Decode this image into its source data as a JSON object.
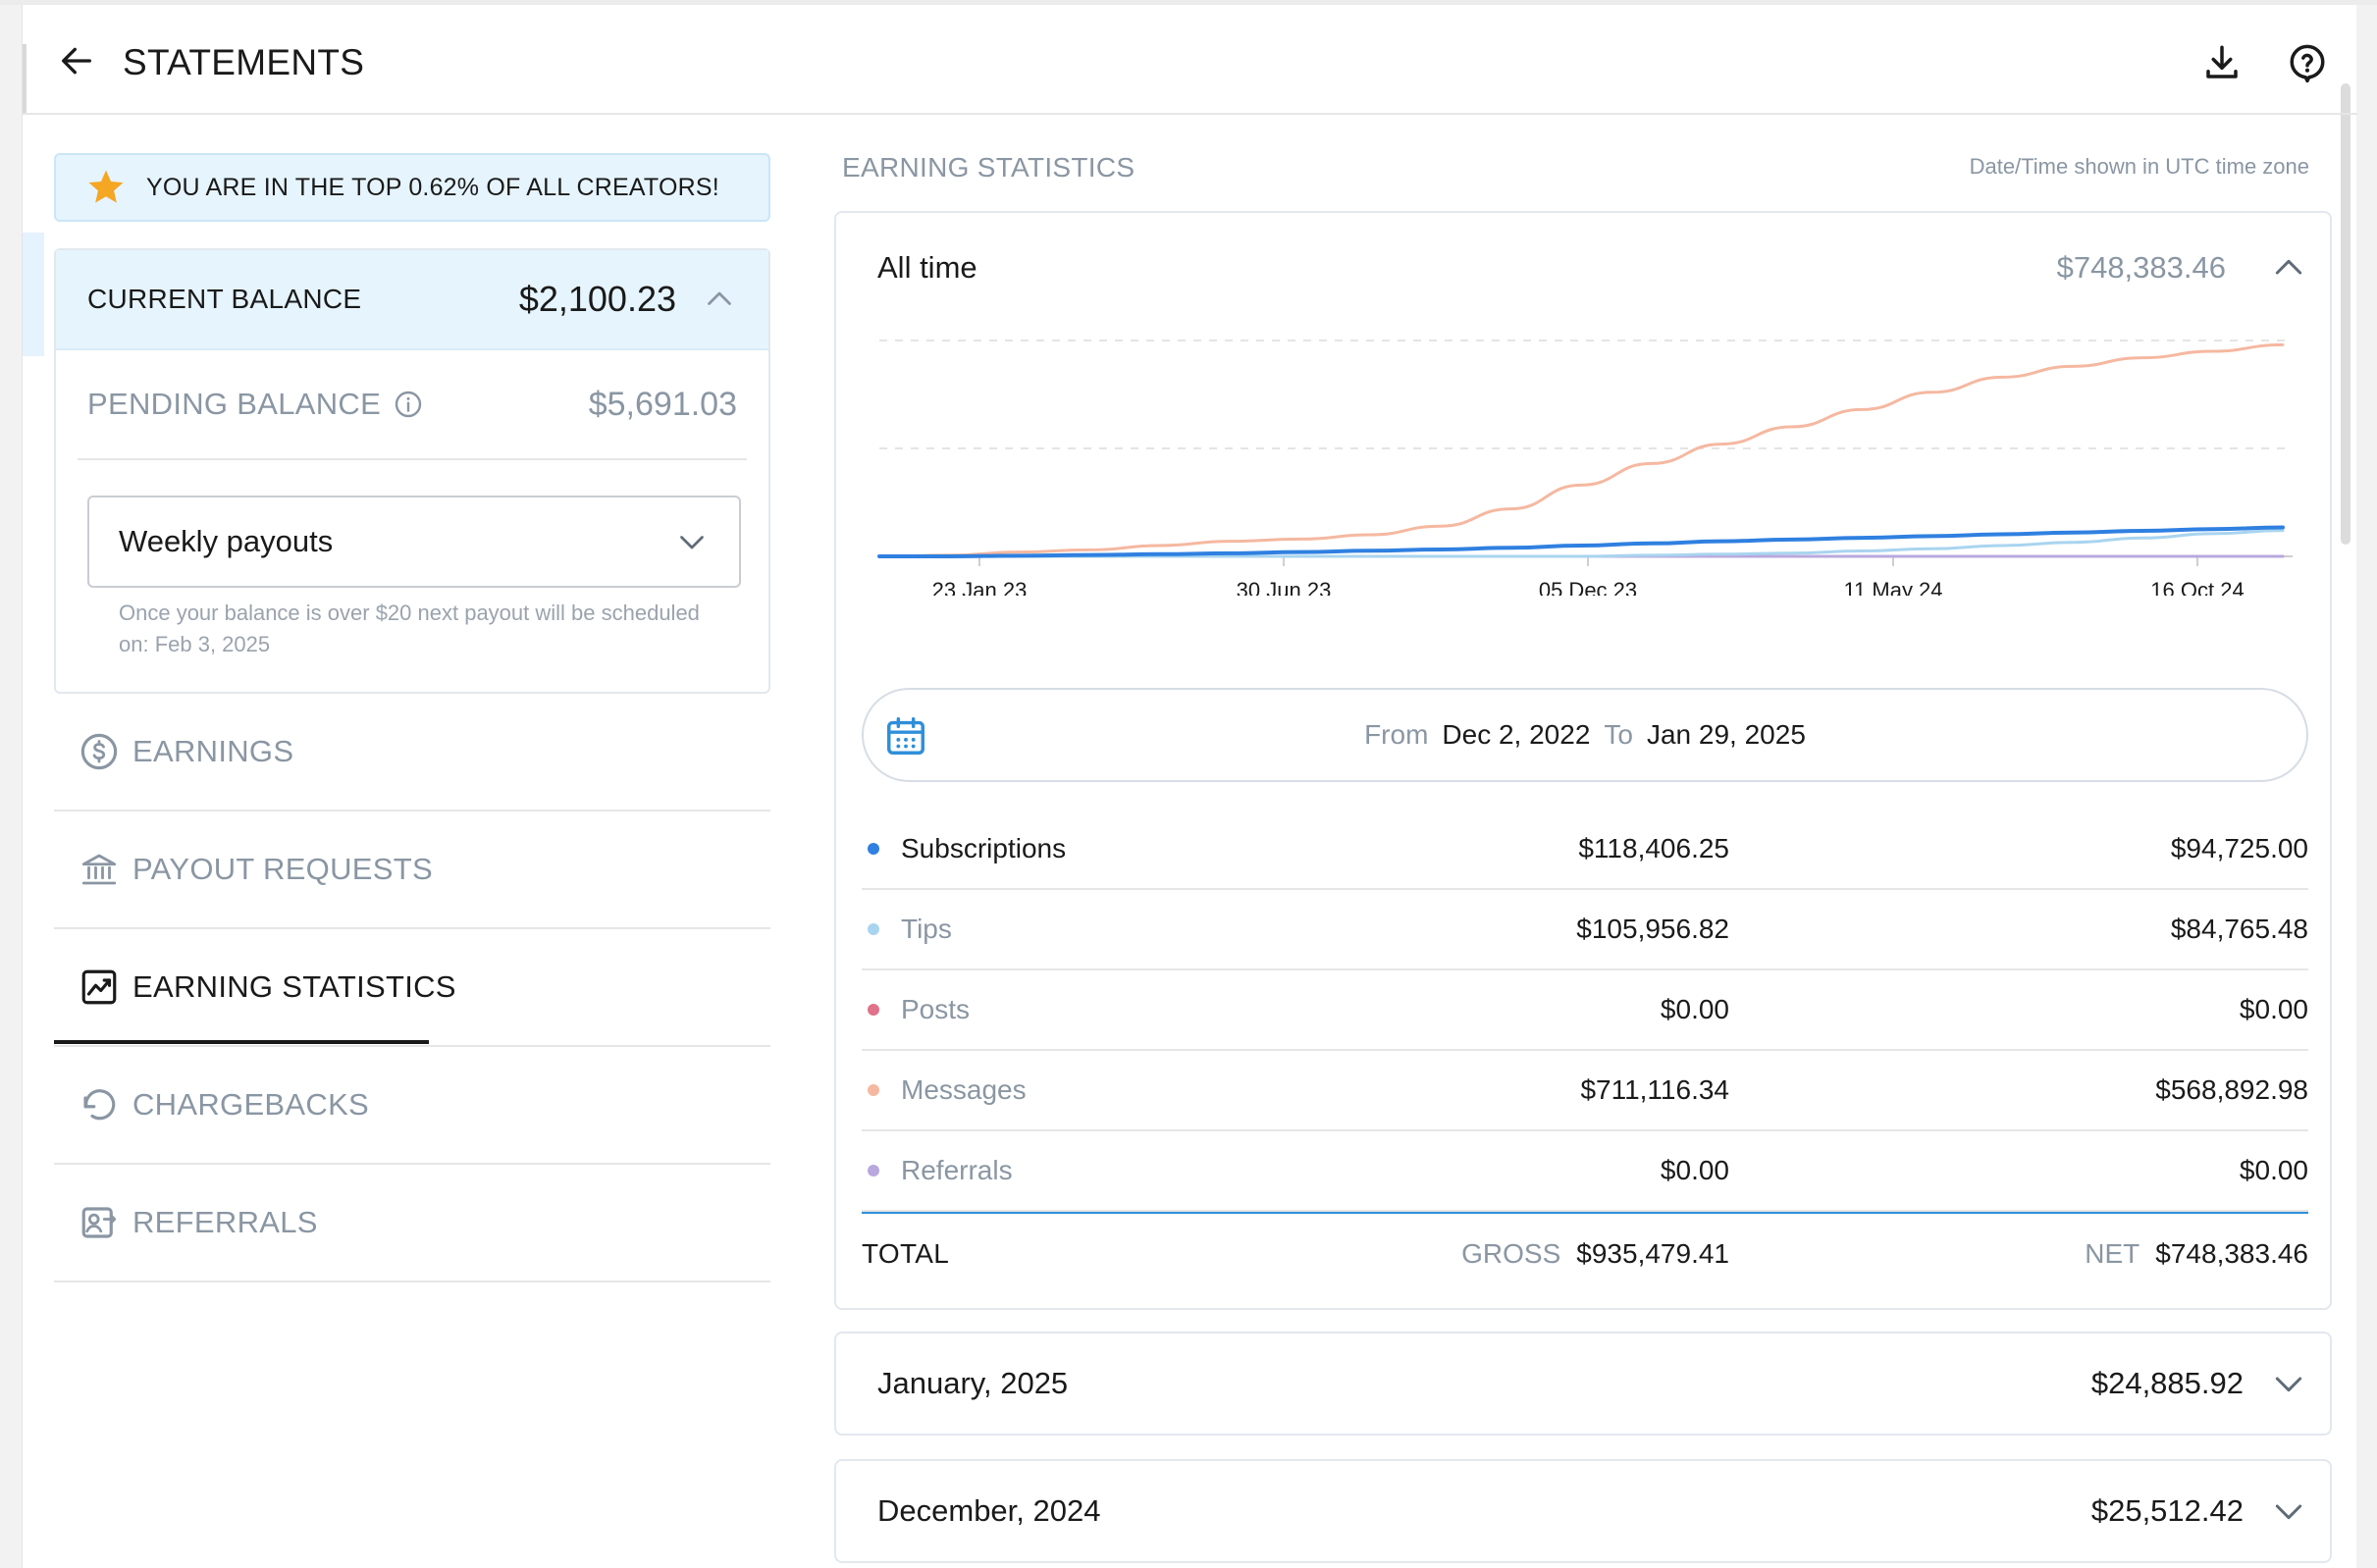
{
  "header": {
    "title": "STATEMENTS",
    "back_icon": "arrow-left-icon",
    "download_icon": "download-icon",
    "help_icon": "help-circle-icon"
  },
  "banner": {
    "text": "YOU ARE IN THE TOP 0.62% OF ALL CREATORS!",
    "icon": "star-icon",
    "star_color": "#f5a623"
  },
  "balance": {
    "current_label": "CURRENT BALANCE",
    "current_value": "$2,100.23",
    "pending_label": "PENDING BALANCE",
    "pending_value": "$5,691.03",
    "payout_select": "Weekly payouts",
    "payout_note": "Once your balance is over $20 next payout will be scheduled on: Feb 3, 2025"
  },
  "nav": {
    "items": [
      {
        "label": "EARNINGS",
        "icon": "dollar-circle-icon",
        "active": false
      },
      {
        "label": "PAYOUT REQUESTS",
        "icon": "bank-icon",
        "active": false
      },
      {
        "label": "EARNING STATISTICS",
        "icon": "chart-icon",
        "active": true
      },
      {
        "label": "CHARGEBACKS",
        "icon": "undo-icon",
        "active": false
      },
      {
        "label": "REFERRALS",
        "icon": "referral-icon",
        "active": false
      }
    ]
  },
  "stats": {
    "section_title": "EARNING STATISTICS",
    "tz_note": "Date/Time shown in UTC time zone",
    "period": "All time",
    "period_total": "$748,383.46",
    "range": {
      "from_label": "From",
      "from": "Dec 2, 2022",
      "to_label": "To",
      "to": "Jan 29, 2025"
    },
    "rows": [
      {
        "name": "Subscriptions",
        "gross": "$118,406.25",
        "net": "$94,725.00",
        "color": "#2f80e0"
      },
      {
        "name": "Tips",
        "gross": "$105,956.82",
        "net": "$84,765.48",
        "color": "#a9d4ef"
      },
      {
        "name": "Posts",
        "gross": "$0.00",
        "net": "$0.00",
        "color": "#e0728a"
      },
      {
        "name": "Messages",
        "gross": "$711,116.34",
        "net": "$568,892.98",
        "color": "#f5b8a0"
      },
      {
        "name": "Referrals",
        "gross": "$0.00",
        "net": "$0.00",
        "color": "#b9a8de"
      }
    ],
    "total": {
      "label": "TOTAL",
      "gross_label": "GROSS",
      "gross": "$935,479.41",
      "net_label": "NET",
      "net": "$748,383.46"
    }
  },
  "months": [
    {
      "label": "January, 2025",
      "amount": "$24,885.92"
    },
    {
      "label": "December, 2024",
      "amount": "$25,512.42"
    }
  ],
  "chart_data": {
    "type": "line",
    "x_tick_labels": [
      "23 Jan 23",
      "30 Jun 23",
      "05 Dec 23",
      "11 May 24",
      "16 Oct 24"
    ],
    "grid": true,
    "series": [
      {
        "name": "Messages",
        "color": "#f5b8a0",
        "values": [
          0,
          0.5,
          2,
          3,
          5,
          7,
          8,
          10,
          14,
          22,
          33,
          43,
          52,
          60,
          68,
          76,
          83,
          88,
          92,
          95,
          98
        ]
      },
      {
        "name": "Subscriptions",
        "color": "#2f80e0",
        "values": [
          0,
          0,
          0.3,
          0.6,
          1,
          1.4,
          2,
          2.6,
          3.2,
          4,
          5,
          6,
          7,
          7.8,
          8.6,
          9.4,
          10.2,
          11,
          11.8,
          12.6,
          13.4
        ]
      },
      {
        "name": "Tips",
        "color": "#a9d4ef",
        "values": [
          0,
          0,
          0,
          0,
          0,
          0,
          0,
          0,
          0,
          0,
          0,
          0.5,
          1,
          1.5,
          2.5,
          3.5,
          5,
          6.5,
          8.5,
          10.5,
          12
        ]
      },
      {
        "name": "Posts",
        "color": "#e0728a",
        "values": [
          0,
          0,
          0,
          0,
          0,
          0,
          0,
          0,
          0,
          0,
          0,
          0,
          0,
          0,
          0,
          0,
          0,
          0,
          0,
          0,
          0
        ]
      },
      {
        "name": "Referrals",
        "color": "#b9a8de",
        "values": [
          0,
          0,
          0,
          0,
          0,
          0,
          0,
          0,
          0,
          0,
          0,
          0,
          0,
          0,
          0,
          0,
          0,
          0,
          0,
          0,
          0
        ]
      }
    ]
  }
}
